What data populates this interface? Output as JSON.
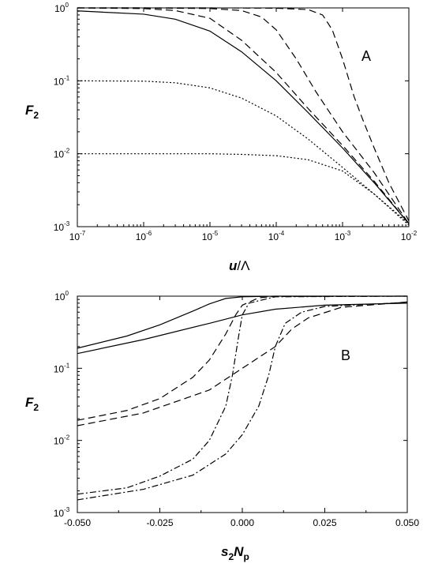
{
  "chart_data": [
    {
      "panel": "A",
      "type": "line",
      "xlabel": "u/Λ",
      "ylabel": "F2",
      "x_scale": "log",
      "y_scale": "log",
      "xlim": [
        1e-07,
        0.01
      ],
      "ylim": [
        0.001,
        1
      ],
      "x_ticks": [
        {
          "v": 1e-07,
          "base": "10",
          "exp": "-7"
        },
        {
          "v": 1e-06,
          "base": "10",
          "exp": "-6"
        },
        {
          "v": 1e-05,
          "base": "10",
          "exp": "-5"
        },
        {
          "v": 0.0001,
          "base": "10",
          "exp": "-4"
        },
        {
          "v": 0.001,
          "base": "10",
          "exp": "-3"
        },
        {
          "v": 0.01,
          "base": "10",
          "exp": "-2"
        }
      ],
      "y_ticks": [
        {
          "v": 0.001,
          "base": "10",
          "exp": "-3"
        },
        {
          "v": 0.01,
          "base": "10",
          "exp": "-2"
        },
        {
          "v": 0.1,
          "base": "10",
          "exp": "-1"
        },
        {
          "v": 1,
          "base": "10",
          "exp": "0"
        }
      ],
      "series": [
        {
          "style": "solid",
          "x": [
            1e-07,
            1e-06,
            3e-06,
            1e-05,
            3e-05,
            0.0001,
            0.0003,
            0.001,
            0.003,
            0.01
          ],
          "y": [
            0.91,
            0.82,
            0.7,
            0.48,
            0.25,
            0.1,
            0.037,
            0.012,
            0.004,
            0.0011
          ]
        },
        {
          "style": "dashed",
          "x": [
            1e-07,
            1e-06,
            3e-06,
            1e-05,
            3e-05,
            0.0001,
            0.0003,
            0.001,
            0.003,
            0.01
          ],
          "y": [
            1.0,
            0.98,
            0.92,
            0.72,
            0.36,
            0.13,
            0.042,
            0.013,
            0.0042,
            0.0011
          ]
        },
        {
          "style": "dashed",
          "x": [
            1e-07,
            1e-06,
            1e-05,
            3e-05,
            6e-05,
            0.0001,
            0.0002,
            0.0004,
            0.001,
            0.003,
            0.01
          ],
          "y": [
            1.0,
            1.0,
            0.98,
            0.92,
            0.75,
            0.5,
            0.2,
            0.07,
            0.02,
            0.0055,
            0.0011
          ]
        },
        {
          "style": "dashed",
          "x": [
            1e-07,
            1e-05,
            0.0001,
            0.0003,
            0.0005,
            0.0007,
            0.001,
            0.0015,
            0.002,
            0.003,
            0.005,
            0.01
          ],
          "y": [
            1.0,
            1.0,
            0.99,
            0.95,
            0.8,
            0.5,
            0.2,
            0.06,
            0.03,
            0.012,
            0.004,
            0.0012
          ]
        },
        {
          "style": "dotted",
          "x": [
            1e-07,
            1e-06,
            3e-06,
            1e-05,
            3e-05,
            0.0001,
            0.0003,
            0.001,
            0.003,
            0.01
          ],
          "y": [
            0.1,
            0.099,
            0.094,
            0.08,
            0.058,
            0.033,
            0.016,
            0.0065,
            0.0028,
            0.0011
          ]
        },
        {
          "style": "dotted",
          "x": [
            1e-07,
            1e-05,
            3e-05,
            0.0001,
            0.0003,
            0.001,
            0.003,
            0.01
          ],
          "y": [
            0.01,
            0.01,
            0.0098,
            0.0094,
            0.0083,
            0.0058,
            0.0028,
            0.00105
          ]
        }
      ]
    },
    {
      "panel": "B",
      "type": "line",
      "xlabel": "s2Np",
      "ylabel": "F2",
      "x_scale": "linear",
      "y_scale": "log",
      "xlim": [
        -0.05,
        0.05
      ],
      "ylim": [
        0.001,
        1
      ],
      "x_ticks": [
        {
          "v": -0.05,
          "label": "-0.050"
        },
        {
          "v": -0.025,
          "label": "-0.025"
        },
        {
          "v": 0.0,
          "label": "0.000"
        },
        {
          "v": 0.025,
          "label": "0.025"
        },
        {
          "v": 0.05,
          "label": "0.050"
        }
      ],
      "y_ticks": [
        {
          "v": 0.001,
          "base": "10",
          "exp": "-3"
        },
        {
          "v": 0.01,
          "base": "10",
          "exp": "-2"
        },
        {
          "v": 0.1,
          "base": "10",
          "exp": "-1"
        },
        {
          "v": 1,
          "base": "10",
          "exp": "0"
        }
      ],
      "series": [
        {
          "style": "solid",
          "x": [
            -0.05,
            -0.035,
            -0.025,
            -0.015,
            -0.01,
            -0.005,
            0.0,
            0.01,
            0.05
          ],
          "y": [
            0.19,
            0.28,
            0.4,
            0.62,
            0.78,
            0.93,
            0.98,
            1.0,
            1.0
          ]
        },
        {
          "style": "solid",
          "x": [
            -0.05,
            -0.03,
            -0.01,
            0.0,
            0.01,
            0.025,
            0.05
          ],
          "y": [
            0.16,
            0.25,
            0.42,
            0.55,
            0.66,
            0.75,
            0.8
          ]
        },
        {
          "style": "dashed",
          "x": [
            -0.05,
            -0.035,
            -0.025,
            -0.015,
            -0.01,
            -0.005,
            -0.002,
            0.0,
            0.005,
            0.01,
            0.05
          ],
          "y": [
            0.019,
            0.026,
            0.038,
            0.075,
            0.13,
            0.3,
            0.55,
            0.75,
            0.95,
            0.99,
            1.0
          ]
        },
        {
          "style": "dashed",
          "x": [
            -0.05,
            -0.03,
            -0.01,
            0.0,
            0.01,
            0.015,
            0.02,
            0.03,
            0.05
          ],
          "y": [
            0.016,
            0.024,
            0.05,
            0.1,
            0.2,
            0.35,
            0.5,
            0.7,
            0.83
          ]
        },
        {
          "style": "dashdot",
          "x": [
            -0.05,
            -0.035,
            -0.025,
            -0.015,
            -0.01,
            -0.005,
            -0.003,
            -0.001,
            0.0,
            0.002,
            0.01,
            0.05
          ],
          "y": [
            0.0018,
            0.0022,
            0.0032,
            0.0055,
            0.01,
            0.03,
            0.08,
            0.3,
            0.55,
            0.8,
            0.98,
            1.0
          ]
        },
        {
          "style": "dashdot",
          "x": [
            -0.05,
            -0.03,
            -0.015,
            -0.005,
            0.0,
            0.005,
            0.008,
            0.01,
            0.013,
            0.018,
            0.025,
            0.05
          ],
          "y": [
            0.0015,
            0.0021,
            0.0033,
            0.0065,
            0.012,
            0.03,
            0.08,
            0.2,
            0.42,
            0.6,
            0.72,
            0.82
          ]
        }
      ]
    }
  ],
  "panel_letters": {
    "a": "A",
    "b": "B"
  },
  "ylabel": {
    "main": "F",
    "sub": "2"
  },
  "xlabel_a": {
    "main": "u",
    "rest": "/Λ"
  },
  "xlabel_b": {
    "s": "s",
    "s_sub": "2",
    "n": "N",
    "n_sub": "p"
  }
}
